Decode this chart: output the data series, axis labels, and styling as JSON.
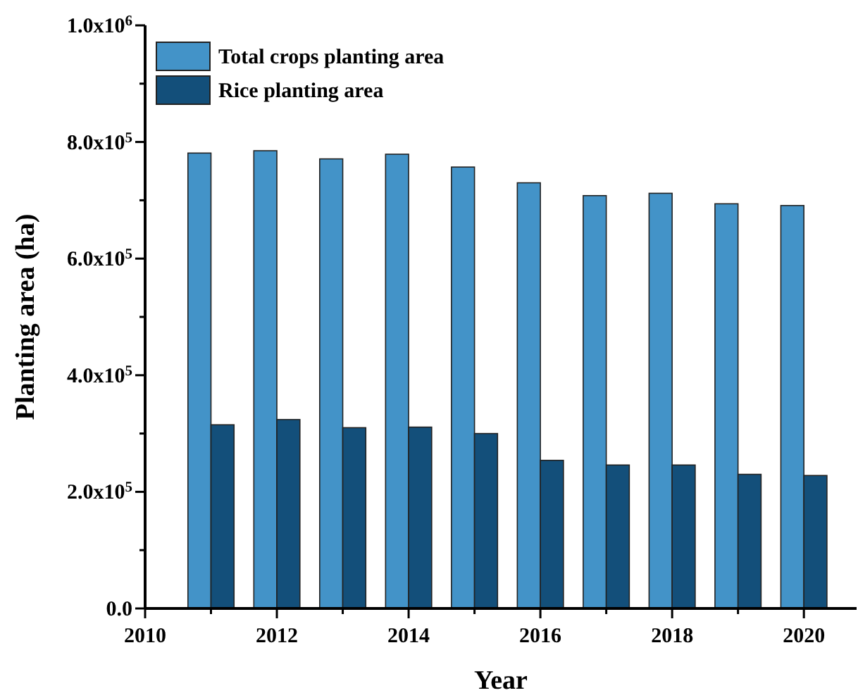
{
  "chart_data": {
    "type": "bar",
    "xlabel": "Year",
    "ylabel": "Planting area (ha)",
    "x": [
      2011,
      2012,
      2013,
      2014,
      2015,
      2016,
      2017,
      2018,
      2019,
      2020
    ],
    "series": [
      {
        "name": "Total crops planting area",
        "color": "#4393c8",
        "values": [
          781000,
          785000,
          771000,
          779000,
          757000,
          730000,
          708000,
          712000,
          694000,
          691000
        ]
      },
      {
        "name": "Rice planting area",
        "color": "#134f7a",
        "values": [
          315000,
          324000,
          310000,
          311000,
          300000,
          254000,
          246000,
          246000,
          230000,
          228000
        ]
      }
    ],
    "xlim": [
      2010,
      2020.8
    ],
    "xticks": [
      2010,
      {
        "value": 2011,
        "label": null
      },
      2012,
      {
        "value": 2013,
        "label": null
      },
      2014,
      {
        "value": 2015,
        "label": null
      },
      2016,
      {
        "value": 2017,
        "label": null
      },
      2018,
      {
        "value": 2019,
        "label": null
      },
      2020
    ],
    "ylim": [
      0,
      1000000
    ],
    "yticks": [
      {
        "value": 0,
        "label": "0.0"
      },
      {
        "value": 100000,
        "label": null
      },
      {
        "value": 200000,
        "label": "2.0x10$^{5}$"
      },
      {
        "value": 300000,
        "label": null
      },
      {
        "value": 400000,
        "label": "4.0x10$^{5}$"
      },
      {
        "value": 500000,
        "label": null
      },
      {
        "value": 600000,
        "label": "6.0x10$^{5}$"
      },
      {
        "value": 700000,
        "label": null
      },
      {
        "value": 800000,
        "label": "8.0x10$^{5}$"
      },
      {
        "value": 900000,
        "label": null
      },
      {
        "value": 1000000,
        "label": "1.0x10$^{6}$"
      }
    ],
    "legend": "top left",
    "grid": false
  }
}
